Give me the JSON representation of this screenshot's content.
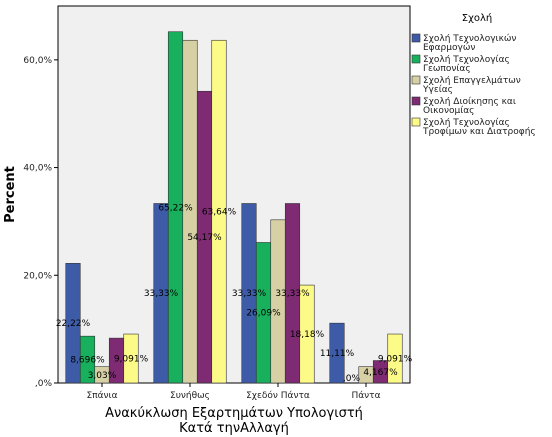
{
  "chart_data": {
    "type": "bar",
    "title": "",
    "xlabel_lines": [
      "Ανακύκλωση Εξαρτημάτων Υπολογιστή",
      "Κατά τηνΑλλαγή"
    ],
    "ylabel": "Percent",
    "ylim": [
      0,
      70
    ],
    "yticks": [
      0,
      20,
      40,
      60
    ],
    "ytick_labels": [
      ",0%",
      "20,0%",
      "40,0%",
      "60,0%"
    ],
    "grid": false,
    "legend_position": "right",
    "legend_title": "Σχολή",
    "categories": [
      "Σπάνια",
      "Συνήθως",
      "Σχεδόν Πάντα",
      "Πάντα"
    ],
    "series": [
      {
        "name_lines": [
          "Σχολή Τεχνολογικών",
          "Εφαρμογών"
        ],
        "color": "#3e5ba8",
        "values": [
          22.22,
          33.33,
          33.33,
          11.11
        ],
        "labels": [
          "22,22%",
          "33,33%",
          "33,33%",
          "11,11%"
        ]
      },
      {
        "name_lines": [
          "Σχολή Τεχνολογίας",
          "Γεωπονίας"
        ],
        "color": "#19b05d",
        "values": [
          8.696,
          65.22,
          26.09,
          0
        ],
        "labels": [
          "8,696%",
          "65,22%",
          "26,09%",
          ""
        ]
      },
      {
        "name_lines": [
          "Σχολή Επαγγελμάτων",
          "Υγείας"
        ],
        "color": "#d6d0a4",
        "values": [
          3.03,
          63.64,
          30.3,
          3.03
        ],
        "labels": [
          "3,03%",
          "",
          "",
          ""
        ]
      },
      {
        "name_lines": [
          "Σχολή Διοίκησης και",
          "Οικονομίας"
        ],
        "color": "#7e2b74",
        "values": [
          8.333,
          54.17,
          33.33,
          4.167
        ],
        "labels": [
          "",
          "54,17%",
          "33,33%",
          "4,167%"
        ]
      },
      {
        "name_lines": [
          "Σχολή Τεχνολογίας",
          "Τροφίμων και Διατροφής"
        ],
        "color": "#fdfb87",
        "values": [
          9.091,
          63.64,
          18.18,
          9.091
        ],
        "labels": [
          "9,091%",
          "63,64%",
          "18,18%",
          "9,091%"
        ]
      }
    ],
    "extra_labels": [
      {
        "category_index": 3,
        "series_index": 1,
        "text": ",0%"
      }
    ]
  }
}
